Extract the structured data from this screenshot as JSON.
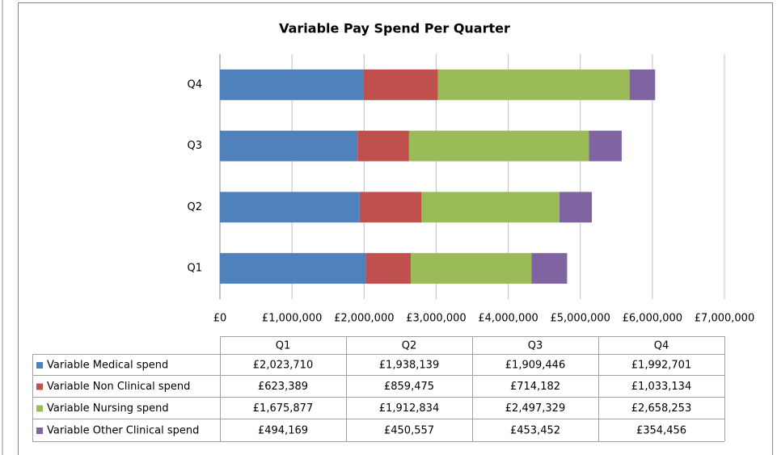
{
  "chart_data": {
    "type": "stacked-barh",
    "title": "Variable Pay Spend Per Quarter",
    "categories": [
      "Q1",
      "Q2",
      "Q3",
      "Q4"
    ],
    "series": [
      {
        "name": "Variable Medical spend",
        "color": "#4f81bd",
        "values": [
          2023710,
          1938139,
          1909446,
          1992701
        ],
        "value_labels": [
          "£2,023,710",
          "£1,938,139",
          "£1,909,446",
          "£1,992,701"
        ]
      },
      {
        "name": "Variable Non Clinical spend",
        "color": "#c0504d",
        "values": [
          623389,
          859475,
          714182,
          1033134
        ],
        "value_labels": [
          "£623,389",
          "£859,475",
          "£714,182",
          "£1,033,134"
        ]
      },
      {
        "name": "Variable Nursing spend",
        "color": "#9bbb59",
        "values": [
          1675877,
          1912834,
          2497329,
          2658253
        ],
        "value_labels": [
          "£1,675,877",
          "£1,912,834",
          "£2,497,329",
          "£2,658,253"
        ]
      },
      {
        "name": "Variable Other Clinical spend",
        "color": "#8064a2",
        "values": [
          494169,
          450557,
          453452,
          354456
        ],
        "value_labels": [
          "£494,169",
          "£450,557",
          "£453,452",
          "£354,456"
        ]
      }
    ],
    "xlim": [
      0,
      7000000
    ],
    "xticks": [
      {
        "value": 0,
        "label": "£0"
      },
      {
        "value": 1000000,
        "label": "£1,000,000"
      },
      {
        "value": 2000000,
        "label": "£2,000,000"
      },
      {
        "value": 3000000,
        "label": "£3,000,000"
      },
      {
        "value": 4000000,
        "label": "£4,000,000"
      },
      {
        "value": 5000000,
        "label": "£5,000,000"
      },
      {
        "value": 6000000,
        "label": "£6,000,000"
      },
      {
        "value": 7000000,
        "label": "£7,000,000"
      }
    ],
    "grid": true,
    "legend": "table"
  }
}
